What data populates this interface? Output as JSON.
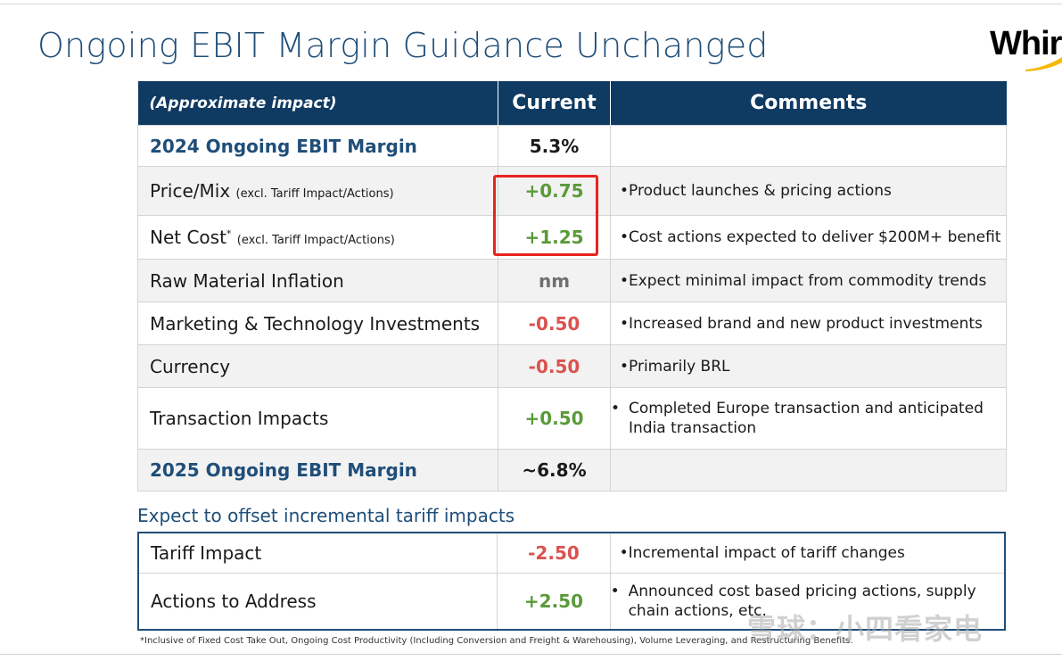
{
  "title": "Ongoing EBIT Margin Guidance Unchanged",
  "logo_text": "Whirl",
  "colors": {
    "title": "#1f4e79",
    "header_bg": "#0f3a62",
    "positive": "#5a9a3a",
    "negative": "#d9534f",
    "highlight": "#e8231f"
  },
  "table": {
    "headers": [
      "(Approximate impact)",
      "Current",
      "Comments"
    ],
    "rows": [
      {
        "label": "2024 Ongoing EBIT Margin",
        "note": "",
        "value": "5.3%",
        "comment": ""
      },
      {
        "label": "Price/Mix",
        "note": "(excl. Tariff Impact/Actions)",
        "value": "+0.75",
        "comment": "Product launches & pricing actions"
      },
      {
        "label": "Net Cost",
        "sup": "*",
        "note": "(excl. Tariff Impact/Actions)",
        "value": "+1.25",
        "comment": "Cost actions expected to deliver $200M+ benefit"
      },
      {
        "label": "Raw Material Inflation",
        "note": "",
        "value": "nm",
        "comment": "Expect minimal impact from commodity trends"
      },
      {
        "label": "Marketing & Technology Investments",
        "note": "",
        "value": "-0.50",
        "comment": "Increased brand and new product investments"
      },
      {
        "label": "Currency",
        "note": "",
        "value": "-0.50",
        "comment": "Primarily BRL"
      },
      {
        "label": "Transaction Impacts",
        "note": "",
        "value": "+0.50",
        "comment": "Completed Europe transaction and anticipated India transaction"
      },
      {
        "label": "2025 Ongoing EBIT Margin",
        "note": "",
        "value": "~6.8%",
        "comment": ""
      }
    ]
  },
  "tariff_section": {
    "heading": "Expect to offset incremental tariff impacts",
    "rows": [
      {
        "label": "Tariff Impact",
        "value": "-2.50",
        "comment": "Incremental impact of tariff changes"
      },
      {
        "label": "Actions to Address",
        "value": "+2.50",
        "comment": "Announced cost based pricing actions, supply chain actions, etc."
      }
    ]
  },
  "bullet": "•",
  "footnote": "*Inclusive of Fixed Cost Take Out, Ongoing Cost Productivity (Including Conversion and Freight & Warehousing), Volume Leveraging, and Restructuring Benefits.",
  "watermark": "雪球：小四看家电"
}
